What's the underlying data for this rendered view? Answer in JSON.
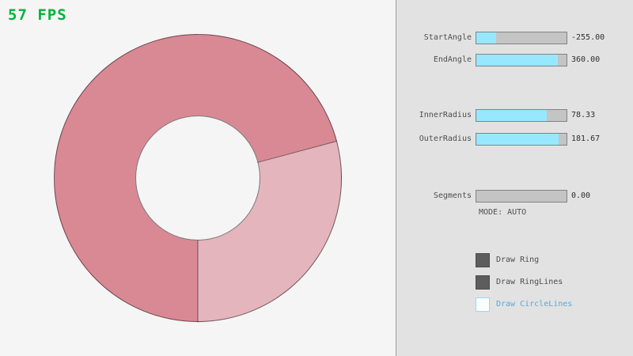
{
  "fps": {
    "text": "57 FPS"
  },
  "colors": {
    "bg": "#f5f5f5",
    "panel": "#e2e2e2",
    "panel_border": "#9e9e9e",
    "fps": "#00b43c",
    "label": "#4e4e4e",
    "value": "#2e2e2e",
    "slider_track": "#c4c4c4",
    "slider_border": "#838383",
    "slider_fill": "#97e8ff",
    "check_dark": "#5d5d5d",
    "check_dark_border": "#4c4c4c",
    "check_blue_border": "#97d8f0",
    "check_blue_text": "#55aadd",
    "ring_dark": "#d98994",
    "ring_light": "#e4b5bc",
    "ring_line": "rgba(0,0,0,0.5)"
  },
  "panel": {
    "sliders": [
      {
        "label": "StartAngle",
        "value": "-255.00",
        "fill_pct": 21.7
      },
      {
        "label": "EndAngle",
        "value": "360.00",
        "fill_pct": 90.0
      },
      {
        "label": "InnerRadius",
        "value": "78.33",
        "fill_pct": 78.3
      },
      {
        "label": "OuterRadius",
        "value": "181.67",
        "fill_pct": 90.8
      },
      {
        "label": "Segments",
        "value": "0.00",
        "fill_pct": 0
      }
    ],
    "mode_text": "MODE: AUTO",
    "checkboxes": [
      {
        "label": "Draw Ring",
        "checked": true
      },
      {
        "label": "Draw RingLines",
        "checked": true
      },
      {
        "label": "Draw CircleLines",
        "checked": false
      }
    ]
  },
  "ring": {
    "visual_segments": [
      {
        "color": "#d98994",
        "start_deg": 0,
        "end_deg": 75
      },
      {
        "color": "#e4b5bc",
        "start_deg": 75,
        "end_deg": 180
      },
      {
        "color": "#d98994",
        "start_deg": 180,
        "end_deg": 360
      }
    ]
  }
}
